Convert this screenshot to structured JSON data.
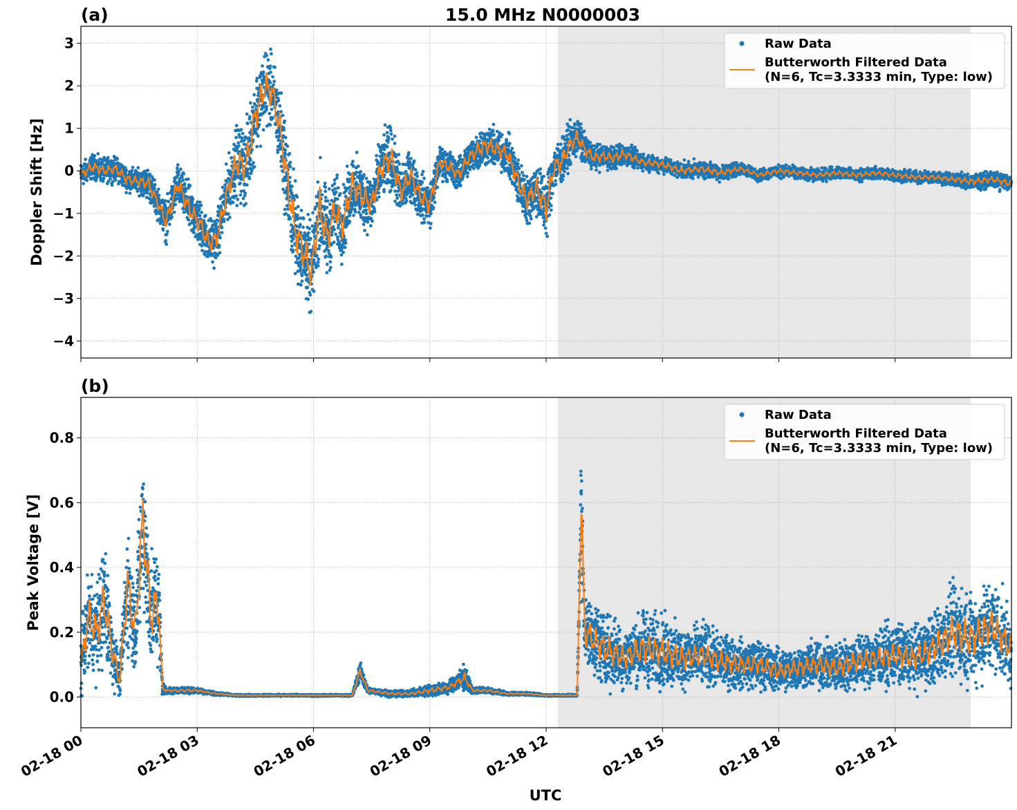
{
  "figure": {
    "title": "15.0 MHz N0000003",
    "xlabel": "UTC"
  },
  "colors": {
    "raw": "#1f77b4",
    "filtered": "#ff7f0e",
    "shade": "#e7e7e7",
    "grid": "#b0b0b0"
  },
  "chart_data": [
    {
      "type": "scatter",
      "panel_label": "(a)",
      "title": "15.0 MHz N0000003",
      "xlabel": "",
      "ylabel": "Doppler Shift [Hz]",
      "x_unit": "hours UTC on 02-18",
      "xlim": [
        0,
        24
      ],
      "ylim": [
        -4.4,
        3.4
      ],
      "x_ticks": [
        0,
        3,
        6,
        9,
        12,
        15,
        18,
        21
      ],
      "y_ticks": [
        3,
        2,
        1,
        0,
        -1,
        -2,
        -3,
        -4
      ],
      "y_tick_labels": [
        "3",
        "2",
        "1",
        "0",
        "−1",
        "−2",
        "−3",
        "−4"
      ],
      "grid": true,
      "legend_position": "upper right",
      "shaded_interval": [
        12.3,
        22.95
      ],
      "series": [
        {
          "name": "Raw Data",
          "kind": "points",
          "x": [
            0.0,
            0.3,
            0.6,
            0.9,
            1.2,
            1.5,
            1.75,
            2.0,
            2.2,
            2.5,
            2.8,
            3.1,
            3.3,
            3.5,
            3.75,
            4.0,
            4.25,
            4.5,
            4.75,
            4.95,
            5.15,
            5.35,
            5.55,
            5.75,
            5.95,
            6.15,
            6.35,
            6.55,
            6.75,
            7.0,
            7.25,
            7.5,
            7.75,
            8.0,
            8.25,
            8.5,
            8.75,
            9.0,
            9.25,
            9.5,
            9.75,
            10.0,
            10.25,
            10.5,
            10.75,
            11.0,
            11.25,
            11.5,
            11.75,
            12.0,
            12.2,
            12.4,
            12.6,
            12.8,
            13.0,
            13.25,
            13.5,
            13.75,
            14.0,
            14.5,
            15.0,
            15.5,
            16.0,
            16.5,
            17.0,
            17.5,
            18.0,
            18.5,
            19.0,
            19.5,
            20.0,
            20.5,
            21.0,
            21.5,
            22.0,
            22.5,
            23.0,
            23.5,
            24.0
          ],
          "y": [
            -0.1,
            0.1,
            0.0,
            0.05,
            -0.2,
            -0.25,
            -0.3,
            -0.8,
            -1.2,
            -0.3,
            -0.9,
            -1.3,
            -1.7,
            -1.6,
            -0.6,
            0.2,
            0.1,
            1.3,
            2.0,
            1.8,
            0.9,
            -0.4,
            -1.5,
            -1.9,
            -2.4,
            -0.8,
            -1.6,
            -0.9,
            -1.3,
            -0.3,
            -0.6,
            -0.8,
            0.1,
            0.3,
            -0.5,
            -0.1,
            -0.6,
            -0.8,
            0.2,
            0.1,
            -0.1,
            0.3,
            0.5,
            0.6,
            0.5,
            0.4,
            -0.2,
            -0.7,
            -0.4,
            -0.9,
            0.1,
            0.2,
            0.6,
            0.8,
            0.5,
            0.3,
            0.35,
            0.3,
            0.4,
            0.2,
            0.15,
            0.0,
            0.05,
            -0.05,
            0.05,
            -0.1,
            0.0,
            -0.05,
            -0.1,
            -0.05,
            -0.1,
            -0.05,
            -0.1,
            -0.15,
            -0.15,
            -0.2,
            -0.25,
            -0.2,
            -0.3
          ]
        },
        {
          "name": "Butterworth Filtered Data\n(N=6, Tc=3.3333 min, Type: low)",
          "kind": "line",
          "x": [
            0.0,
            0.3,
            0.6,
            0.9,
            1.2,
            1.5,
            1.75,
            2.0,
            2.2,
            2.5,
            2.8,
            3.1,
            3.3,
            3.5,
            3.75,
            4.0,
            4.25,
            4.5,
            4.75,
            4.95,
            5.15,
            5.35,
            5.55,
            5.75,
            5.95,
            6.15,
            6.35,
            6.55,
            6.75,
            7.0,
            7.25,
            7.5,
            7.75,
            8.0,
            8.25,
            8.5,
            8.75,
            9.0,
            9.25,
            9.5,
            9.75,
            10.0,
            10.25,
            10.5,
            10.75,
            11.0,
            11.25,
            11.5,
            11.75,
            12.0,
            12.2,
            12.4,
            12.6,
            12.8,
            13.0,
            13.25,
            13.5,
            13.75,
            14.0,
            14.5,
            15.0,
            15.5,
            16.0,
            16.5,
            17.0,
            17.5,
            18.0,
            18.5,
            19.0,
            19.5,
            20.0,
            20.5,
            21.0,
            21.5,
            22.0,
            22.5,
            23.0,
            23.5,
            24.0
          ],
          "y": [
            -0.1,
            0.1,
            0.0,
            0.05,
            -0.2,
            -0.25,
            -0.3,
            -0.8,
            -1.2,
            -0.3,
            -0.9,
            -1.3,
            -1.7,
            -1.6,
            -0.6,
            0.2,
            0.1,
            1.3,
            2.0,
            1.8,
            0.9,
            -0.4,
            -1.5,
            -1.9,
            -2.4,
            -0.8,
            -1.6,
            -0.9,
            -1.3,
            -0.3,
            -0.6,
            -0.8,
            0.1,
            0.3,
            -0.5,
            -0.1,
            -0.6,
            -0.8,
            0.2,
            0.1,
            -0.1,
            0.3,
            0.5,
            0.6,
            0.5,
            0.4,
            -0.2,
            -0.7,
            -0.4,
            -0.9,
            0.1,
            0.2,
            0.6,
            0.8,
            0.5,
            0.3,
            0.35,
            0.3,
            0.4,
            0.2,
            0.15,
            0.0,
            0.05,
            -0.05,
            0.05,
            -0.1,
            0.0,
            -0.05,
            -0.1,
            -0.05,
            -0.1,
            -0.05,
            -0.1,
            -0.15,
            -0.15,
            -0.2,
            -0.25,
            -0.2,
            -0.3
          ]
        }
      ],
      "raw_spread": [
        0.3,
        0.3,
        0.3,
        0.3,
        0.3,
        0.3,
        0.4,
        0.4,
        0.5,
        0.5,
        0.6,
        0.6,
        0.6,
        0.6,
        0.7,
        0.9,
        1.0,
        1.0,
        1.0,
        0.9,
        1.1,
        1.2,
        1.2,
        1.1,
        1.1,
        1.2,
        1.1,
        0.9,
        0.9,
        0.8,
        0.8,
        0.7,
        0.8,
        0.8,
        0.7,
        0.6,
        0.6,
        0.6,
        0.4,
        0.4,
        0.4,
        0.4,
        0.5,
        0.5,
        0.5,
        0.5,
        0.6,
        0.6,
        0.7,
        0.8,
        0.6,
        0.6,
        0.5,
        0.5,
        0.4,
        0.3,
        0.3,
        0.3,
        0.3,
        0.2,
        0.2,
        0.2,
        0.2,
        0.2,
        0.15,
        0.15,
        0.15,
        0.15,
        0.15,
        0.15,
        0.15,
        0.15,
        0.15,
        0.15,
        0.15,
        0.15,
        0.2,
        0.2,
        0.2
      ]
    },
    {
      "type": "scatter",
      "panel_label": "(b)",
      "title": "",
      "xlabel": "UTC",
      "ylabel": "Peak Voltage [V]",
      "x_unit": "hours UTC on 02-18",
      "xlim": [
        0,
        24
      ],
      "ylim": [
        -0.095,
        0.925
      ],
      "x_ticks": [
        0,
        3,
        6,
        9,
        12,
        15,
        18,
        21
      ],
      "x_tick_labels": [
        "02-18 00",
        "02-18 03",
        "02-18 06",
        "02-18 09",
        "02-18 12",
        "02-18 15",
        "02-18 18",
        "02-18 21"
      ],
      "y_ticks": [
        0.8,
        0.6,
        0.4,
        0.2,
        0.0
      ],
      "y_tick_labels": [
        "0.8",
        "0.6",
        "0.4",
        "0.2",
        "0.0"
      ],
      "grid": true,
      "legend_position": "upper right",
      "shaded_interval": [
        12.3,
        22.95
      ],
      "series": [
        {
          "name": "Raw Data",
          "kind": "points",
          "x": [
            0.0,
            0.2,
            0.4,
            0.6,
            0.8,
            1.0,
            1.2,
            1.4,
            1.6,
            1.8,
            2.0,
            2.1,
            2.2,
            2.5,
            3.0,
            3.5,
            4.0,
            5.0,
            6.0,
            7.0,
            7.2,
            7.4,
            8.0,
            8.5,
            9.0,
            9.5,
            9.9,
            10.1,
            10.5,
            11.0,
            11.5,
            12.0,
            12.5,
            12.8,
            12.9,
            13.0,
            13.2,
            13.5,
            14.0,
            14.5,
            15.0,
            15.5,
            16.0,
            16.5,
            17.0,
            17.5,
            18.0,
            18.5,
            19.0,
            19.5,
            20.0,
            20.5,
            21.0,
            21.5,
            22.0,
            22.5,
            23.0,
            23.5,
            24.0
          ],
          "y": [
            0.1,
            0.25,
            0.2,
            0.3,
            0.15,
            0.05,
            0.35,
            0.2,
            0.55,
            0.25,
            0.3,
            0.03,
            0.02,
            0.02,
            0.02,
            0.01,
            0.005,
            0.005,
            0.005,
            0.005,
            0.08,
            0.02,
            0.01,
            0.01,
            0.02,
            0.03,
            0.06,
            0.02,
            0.02,
            0.01,
            0.01,
            0.005,
            0.005,
            0.005,
            0.6,
            0.2,
            0.18,
            0.15,
            0.12,
            0.15,
            0.14,
            0.12,
            0.13,
            0.11,
            0.1,
            0.1,
            0.08,
            0.09,
            0.1,
            0.09,
            0.11,
            0.12,
            0.13,
            0.12,
            0.15,
            0.2,
            0.18,
            0.22,
            0.15
          ]
        },
        {
          "name": "Butterworth Filtered Data\n(N=6, Tc=3.3333 min, Type: low)",
          "kind": "line",
          "x": [
            0.0,
            0.2,
            0.4,
            0.6,
            0.8,
            1.0,
            1.2,
            1.4,
            1.6,
            1.8,
            2.0,
            2.1,
            2.2,
            2.5,
            3.0,
            3.5,
            4.0,
            5.0,
            6.0,
            7.0,
            7.2,
            7.4,
            8.0,
            8.5,
            9.0,
            9.5,
            9.9,
            10.1,
            10.5,
            11.0,
            11.5,
            12.0,
            12.5,
            12.8,
            12.9,
            13.0,
            13.2,
            13.5,
            14.0,
            14.5,
            15.0,
            15.5,
            16.0,
            16.5,
            17.0,
            17.5,
            18.0,
            18.5,
            19.0,
            19.5,
            20.0,
            20.5,
            21.0,
            21.5,
            22.0,
            22.5,
            23.0,
            23.5,
            24.0
          ],
          "y": [
            0.1,
            0.25,
            0.2,
            0.3,
            0.15,
            0.05,
            0.35,
            0.2,
            0.55,
            0.25,
            0.3,
            0.03,
            0.02,
            0.02,
            0.02,
            0.01,
            0.005,
            0.005,
            0.005,
            0.005,
            0.08,
            0.02,
            0.01,
            0.01,
            0.02,
            0.03,
            0.06,
            0.02,
            0.02,
            0.01,
            0.01,
            0.005,
            0.005,
            0.005,
            0.6,
            0.2,
            0.18,
            0.15,
            0.12,
            0.15,
            0.14,
            0.12,
            0.13,
            0.11,
            0.1,
            0.1,
            0.08,
            0.09,
            0.1,
            0.09,
            0.11,
            0.12,
            0.13,
            0.12,
            0.15,
            0.2,
            0.18,
            0.22,
            0.15
          ]
        }
      ],
      "raw_spread": [
        0.1,
        0.15,
        0.15,
        0.2,
        0.12,
        0.05,
        0.2,
        0.15,
        0.25,
        0.2,
        0.2,
        0.03,
        0.01,
        0.01,
        0.01,
        0.005,
        0.003,
        0.003,
        0.003,
        0.003,
        0.03,
        0.01,
        0.01,
        0.01,
        0.02,
        0.02,
        0.04,
        0.01,
        0.01,
        0.005,
        0.005,
        0.003,
        0.003,
        0.003,
        0.2,
        0.12,
        0.12,
        0.12,
        0.1,
        0.12,
        0.12,
        0.1,
        0.1,
        0.09,
        0.08,
        0.08,
        0.07,
        0.07,
        0.08,
        0.08,
        0.09,
        0.09,
        0.1,
        0.1,
        0.12,
        0.15,
        0.15,
        0.15,
        0.12
      ]
    }
  ]
}
